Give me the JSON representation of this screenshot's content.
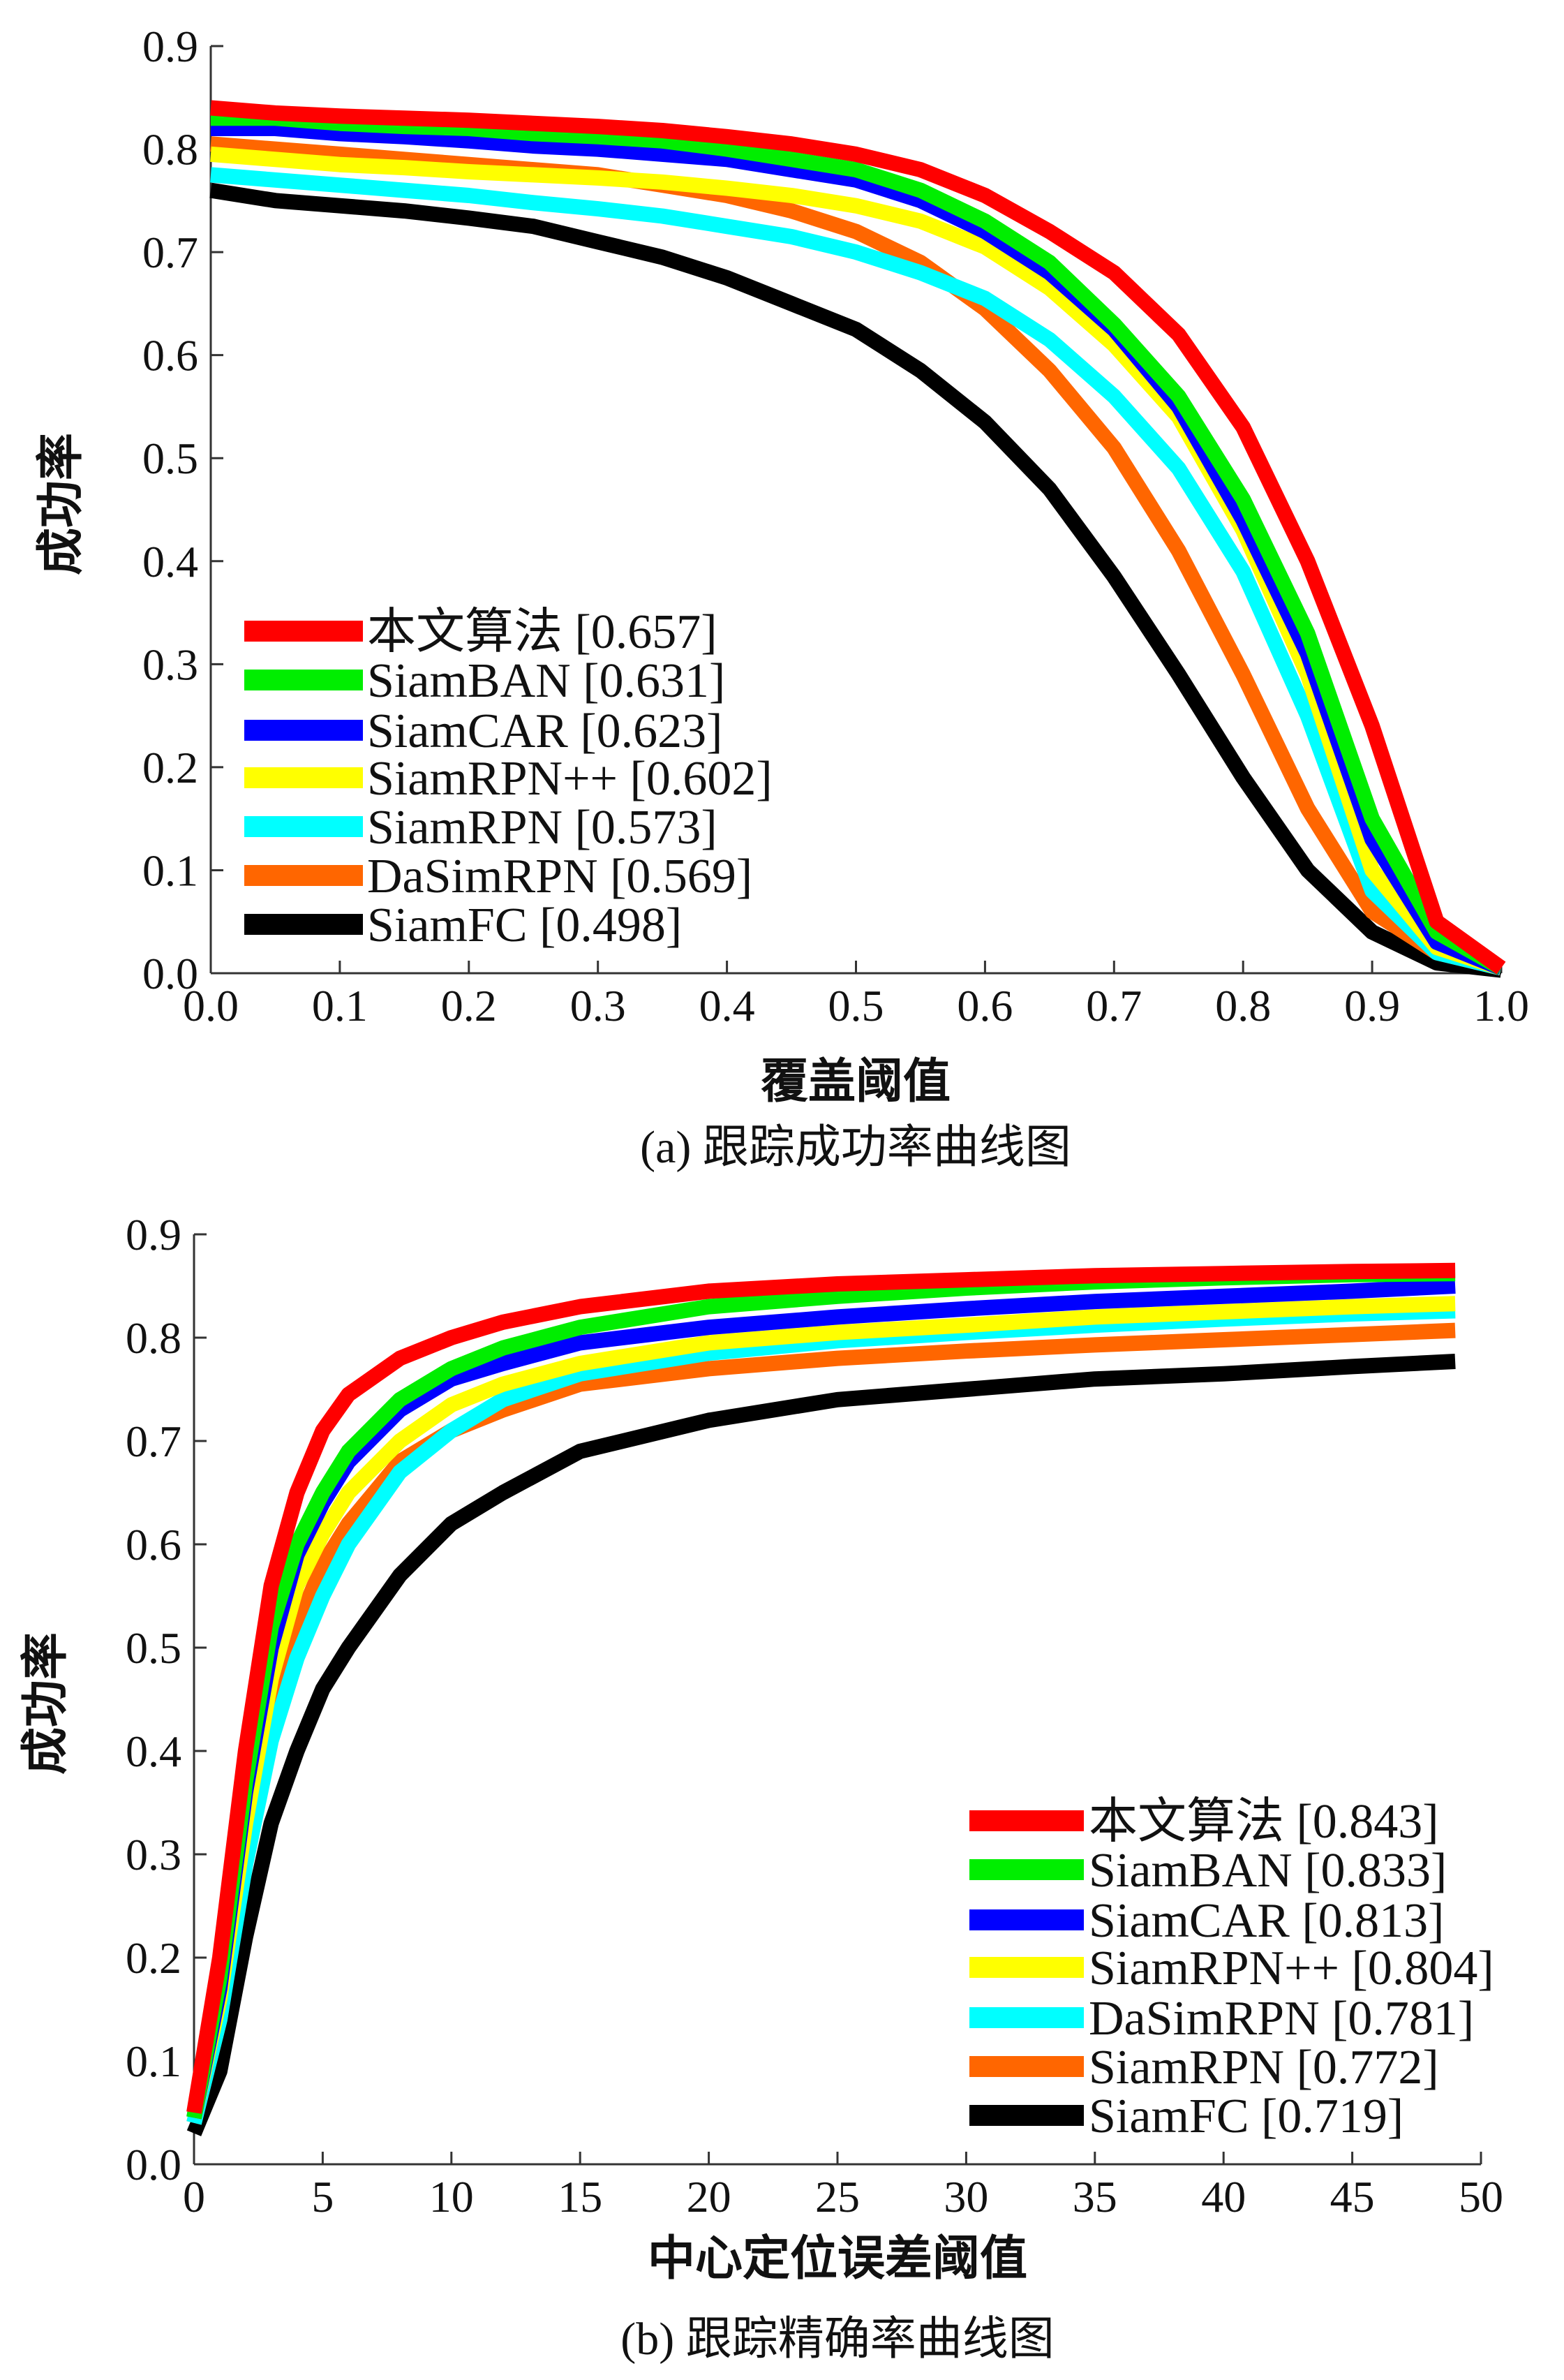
{
  "chart_data": [
    {
      "type": "line",
      "id": "a",
      "title": "(a) 跟踪成功率曲线图",
      "xlabel": "覆盖阈值",
      "ylabel": "成功率",
      "xlim": [
        0,
        1
      ],
      "ylim": [
        0,
        0.9
      ],
      "xticks": [
        "0.0",
        "0.1",
        "0.2",
        "0.3",
        "0.4",
        "0.5",
        "0.6",
        "0.7",
        "0.8",
        "0.9",
        "1.0"
      ],
      "yticks": [
        "0.0",
        "0.1",
        "0.2",
        "0.3",
        "0.4",
        "0.5",
        "0.6",
        "0.7",
        "0.8",
        "0.9"
      ],
      "legend_position": "bottom-left",
      "x": [
        0,
        0.05,
        0.1,
        0.15,
        0.2,
        0.25,
        0.3,
        0.35,
        0.4,
        0.45,
        0.5,
        0.55,
        0.6,
        0.65,
        0.7,
        0.75,
        0.8,
        0.85,
        0.9,
        0.95,
        1.0
      ],
      "series": [
        {
          "name": "本文算法 [0.657]",
          "color": "#ff0000",
          "values": [
            0.84,
            0.835,
            0.832,
            0.83,
            0.828,
            0.825,
            0.822,
            0.818,
            0.812,
            0.805,
            0.795,
            0.78,
            0.755,
            0.72,
            0.68,
            0.62,
            0.53,
            0.4,
            0.24,
            0.05,
            0.005
          ]
        },
        {
          "name": "SiamBAN [0.631]",
          "color": "#00ee00",
          "values": [
            0.83,
            0.83,
            0.825,
            0.822,
            0.82,
            0.815,
            0.812,
            0.808,
            0.8,
            0.79,
            0.78,
            0.76,
            0.73,
            0.69,
            0.63,
            0.56,
            0.46,
            0.33,
            0.15,
            0.04,
            0.005
          ]
        },
        {
          "name": "SiamCAR [0.623]",
          "color": "#0000ff",
          "values": [
            0.82,
            0.82,
            0.815,
            0.812,
            0.808,
            0.803,
            0.8,
            0.795,
            0.79,
            0.78,
            0.77,
            0.75,
            0.72,
            0.68,
            0.625,
            0.55,
            0.44,
            0.31,
            0.13,
            0.03,
            0.005
          ]
        },
        {
          "name": "SiamRPN++ [0.602]",
          "color": "#ffff00",
          "values": [
            0.795,
            0.79,
            0.785,
            0.782,
            0.778,
            0.775,
            0.772,
            0.768,
            0.762,
            0.755,
            0.745,
            0.73,
            0.705,
            0.665,
            0.61,
            0.54,
            0.43,
            0.29,
            0.1,
            0.025,
            0.005
          ]
        },
        {
          "name": "SiamRPN [0.573]",
          "color": "#00ffff",
          "values": [
            0.775,
            0.77,
            0.765,
            0.76,
            0.755,
            0.748,
            0.742,
            0.735,
            0.725,
            0.715,
            0.7,
            0.68,
            0.655,
            0.615,
            0.56,
            0.49,
            0.39,
            0.25,
            0.08,
            0.02,
            0.005
          ]
        },
        {
          "name": "DaSimRPN [0.569]",
          "color": "#ff6600",
          "values": [
            0.805,
            0.8,
            0.795,
            0.79,
            0.785,
            0.78,
            0.775,
            0.765,
            0.755,
            0.74,
            0.72,
            0.69,
            0.645,
            0.585,
            0.51,
            0.41,
            0.29,
            0.16,
            0.06,
            0.02,
            0.005
          ]
        },
        {
          "name": "SiamFC [0.498]",
          "color": "#000000",
          "values": [
            0.76,
            0.75,
            0.745,
            0.74,
            0.733,
            0.725,
            0.71,
            0.695,
            0.675,
            0.65,
            0.625,
            0.585,
            0.535,
            0.47,
            0.385,
            0.29,
            0.19,
            0.1,
            0.04,
            0.01,
            0.003
          ]
        }
      ]
    },
    {
      "type": "line",
      "id": "b",
      "title": "(b) 跟踪精确率曲线图",
      "xlabel": "中心定位误差阈值",
      "ylabel": "成功率",
      "xlim": [
        0,
        50
      ],
      "ylim": [
        0,
        0.9
      ],
      "xticks": [
        "0",
        "5",
        "10",
        "15",
        "20",
        "25",
        "30",
        "35",
        "40",
        "45",
        "50"
      ],
      "yticks": [
        "0.0",
        "0.1",
        "0.2",
        "0.3",
        "0.4",
        "0.5",
        "0.6",
        "0.7",
        "0.8",
        "0.9"
      ],
      "legend_position": "bottom-right",
      "x": [
        0,
        1,
        2,
        3,
        4,
        5,
        6,
        8,
        10,
        12,
        15,
        20,
        25,
        30,
        35,
        40,
        45,
        49
      ],
      "series": [
        {
          "name": "本文算法 [0.843]",
          "color": "#ff0000",
          "values": [
            0.05,
            0.2,
            0.4,
            0.56,
            0.65,
            0.71,
            0.745,
            0.78,
            0.8,
            0.815,
            0.83,
            0.845,
            0.852,
            0.856,
            0.86,
            0.862,
            0.864,
            0.865
          ]
        },
        {
          "name": "SiamBAN [0.833]",
          "color": "#00ee00",
          "values": [
            0.045,
            0.18,
            0.37,
            0.52,
            0.6,
            0.65,
            0.69,
            0.74,
            0.77,
            0.79,
            0.81,
            0.83,
            0.84,
            0.848,
            0.854,
            0.858,
            0.861,
            0.862
          ]
        },
        {
          "name": "SiamCAR [0.813]",
          "color": "#0000ff",
          "values": [
            0.045,
            0.17,
            0.36,
            0.5,
            0.59,
            0.64,
            0.68,
            0.73,
            0.76,
            0.775,
            0.795,
            0.81,
            0.82,
            0.828,
            0.835,
            0.84,
            0.845,
            0.85
          ]
        },
        {
          "name": "SiamRPN++ [0.804]",
          "color": "#ffff00",
          "values": [
            0.045,
            0.16,
            0.33,
            0.47,
            0.56,
            0.61,
            0.65,
            0.7,
            0.735,
            0.755,
            0.775,
            0.795,
            0.805,
            0.812,
            0.82,
            0.825,
            0.83,
            0.833
          ]
        },
        {
          "name": "DaSimRPN [0.781]",
          "color": "#00ffff",
          "values": [
            0.04,
            0.14,
            0.29,
            0.41,
            0.49,
            0.55,
            0.6,
            0.67,
            0.71,
            0.74,
            0.765,
            0.785,
            0.797,
            0.805,
            0.812,
            0.818,
            0.823,
            0.826
          ]
        },
        {
          "name": "SiamRPN [0.772]",
          "color": "#ff6600",
          "values": [
            0.04,
            0.14,
            0.3,
            0.43,
            0.52,
            0.58,
            0.62,
            0.68,
            0.71,
            0.73,
            0.755,
            0.77,
            0.78,
            0.787,
            0.793,
            0.798,
            0.803,
            0.807
          ]
        },
        {
          "name": "SiamFC [0.719]",
          "color": "#000000",
          "values": [
            0.03,
            0.09,
            0.22,
            0.33,
            0.4,
            0.46,
            0.5,
            0.57,
            0.62,
            0.65,
            0.69,
            0.72,
            0.74,
            0.75,
            0.76,
            0.765,
            0.772,
            0.777
          ]
        }
      ]
    }
  ]
}
